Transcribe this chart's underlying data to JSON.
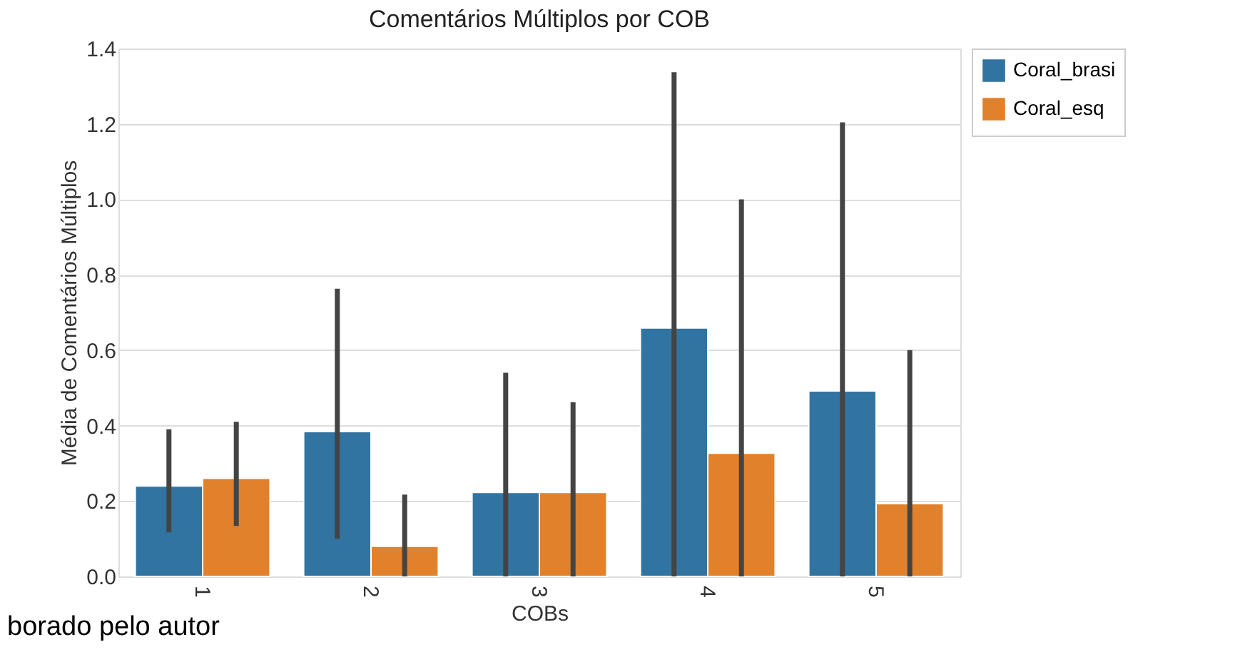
{
  "chart_data": {
    "type": "bar",
    "title": "Comentários Múltiplos por COB",
    "xlabel": "COBs",
    "ylabel": "Média de Comentários Múltiplos",
    "categories": [
      "1",
      "2",
      "3",
      "4",
      "5"
    ],
    "series": [
      {
        "name": "Coral_brasi",
        "color": "#3274a1",
        "values": [
          0.24,
          0.384,
          0.223,
          0.659,
          0.492
        ],
        "errors": [
          [
            0.117,
            0.39
          ],
          [
            0.1,
            0.763
          ],
          [
            0,
            0.54
          ],
          [
            0,
            1.337
          ],
          [
            0,
            1.204
          ]
        ]
      },
      {
        "name": "Coral_esq",
        "color": "#e1812c",
        "values": [
          0.26,
          0.08,
          0.223,
          0.327,
          0.193
        ],
        "errors": [
          [
            0.134,
            0.41
          ],
          [
            0,
            0.217
          ],
          [
            0,
            0.462
          ],
          [
            0,
            1.0
          ],
          [
            0,
            0.6
          ]
        ]
      }
    ],
    "ylim": [
      0,
      1.4
    ],
    "yticks": [
      {
        "value": 0,
        "label": "0.0"
      },
      {
        "value": 0.2,
        "label": "0.2"
      },
      {
        "value": 0.4,
        "label": "0.4"
      },
      {
        "value": 0.6,
        "label": "0.6"
      },
      {
        "value": 0.8,
        "label": "0.8"
      },
      {
        "value": 1.0,
        "label": "1.0"
      },
      {
        "value": 1.2,
        "label": "1.2"
      },
      {
        "value": 1.4,
        "label": "1.4"
      }
    ],
    "grid": "y",
    "legend": "top right",
    "annotations": [
      "borado pelo autor"
    ]
  }
}
